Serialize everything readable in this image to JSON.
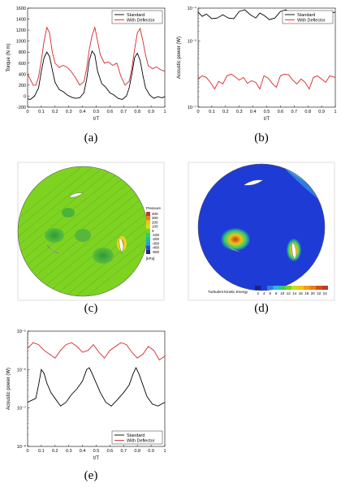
{
  "captions": [
    "(a)",
    "(b)",
    "(c)",
    "(d)",
    "(e)"
  ],
  "chart_data": [
    {
      "type": "line",
      "panel": "a",
      "xlabel": "t/T",
      "ylabel": "Torque (N m)",
      "xlim": [
        0,
        1
      ],
      "ylim": [
        -200,
        1600
      ],
      "xticks": [
        "0",
        "0.1",
        "0.2",
        "0.3",
        "0.4",
        "0.5",
        "0.6",
        "0.7",
        "0.8",
        "0.9",
        "1"
      ],
      "yticks": [
        "-200",
        "0",
        "200",
        "400",
        "600",
        "800",
        "1000",
        "1200",
        "1400",
        "1600"
      ],
      "legend": "top-right",
      "series": [
        {
          "name": "Standard",
          "color": "#000000",
          "x": [
            0,
            0.02,
            0.05,
            0.08,
            0.1,
            0.12,
            0.14,
            0.16,
            0.18,
            0.2,
            0.23,
            0.26,
            0.29,
            0.32,
            0.35,
            0.38,
            0.41,
            0.43,
            0.45,
            0.47,
            0.49,
            0.51,
            0.54,
            0.57,
            0.6,
            0.63,
            0.66,
            0.69,
            0.72,
            0.74,
            0.76,
            0.78,
            0.8,
            0.82,
            0.84,
            0.86,
            0.89,
            0.92,
            0.95,
            0.98,
            1.0
          ],
          "values": [
            -50,
            -60,
            0,
            150,
            450,
            700,
            800,
            720,
            480,
            250,
            120,
            80,
            20,
            -20,
            -40,
            -30,
            60,
            300,
            650,
            820,
            750,
            450,
            230,
            160,
            60,
            20,
            -40,
            -60,
            0,
            150,
            400,
            700,
            780,
            650,
            380,
            150,
            20,
            -40,
            -10,
            -30,
            -10
          ]
        },
        {
          "name": "With Deflector",
          "color": "#d62728",
          "x": [
            0,
            0.02,
            0.04,
            0.06,
            0.08,
            0.1,
            0.12,
            0.14,
            0.16,
            0.18,
            0.2,
            0.23,
            0.26,
            0.29,
            0.32,
            0.35,
            0.38,
            0.41,
            0.43,
            0.45,
            0.47,
            0.49,
            0.51,
            0.53,
            0.56,
            0.59,
            0.62,
            0.65,
            0.68,
            0.71,
            0.74,
            0.76,
            0.78,
            0.8,
            0.82,
            0.84,
            0.86,
            0.88,
            0.91,
            0.94,
            0.97,
            1.0
          ],
          "values": [
            400,
            300,
            200,
            200,
            350,
            650,
            1000,
            1250,
            1150,
            800,
            600,
            520,
            560,
            520,
            440,
            330,
            200,
            260,
            500,
            850,
            1100,
            1250,
            1000,
            750,
            600,
            620,
            560,
            600,
            360,
            200,
            270,
            500,
            850,
            1150,
            1230,
            1000,
            750,
            550,
            500,
            530,
            480,
            450
          ]
        }
      ]
    },
    {
      "type": "line",
      "panel": "b",
      "xlabel": "t/T",
      "ylabel": "Acoustic power (W)",
      "xlim": [
        0,
        1
      ],
      "yscale": "log",
      "ylim_exp": [
        -7,
        -4
      ],
      "xticks": [
        "0",
        "0.1",
        "0.2",
        "0.3",
        "0.4",
        "0.5",
        "0.6",
        "0.7",
        "0.8",
        "0.9",
        "1"
      ],
      "yticks": [
        "10⁻⁷",
        "10⁻⁵",
        "10⁻⁴"
      ],
      "legend": "top-right",
      "series": [
        {
          "name": "Standard",
          "color": "#000000",
          "x": [
            0,
            0.03,
            0.06,
            0.1,
            0.14,
            0.18,
            0.22,
            0.26,
            0.3,
            0.34,
            0.38,
            0.42,
            0.45,
            0.48,
            0.52,
            0.56,
            0.6,
            0.64,
            0.68,
            0.72,
            0.76,
            0.8,
            0.84,
            0.88,
            0.92,
            0.96,
            1.0
          ],
          "log10_values": [
            -4.12,
            -4.25,
            -4.18,
            -4.32,
            -4.3,
            -4.2,
            -4.3,
            -4.32,
            -4.1,
            -4.05,
            -4.2,
            -4.3,
            -4.15,
            -4.22,
            -4.35,
            -4.3,
            -4.1,
            -4.05,
            -4.2,
            -4.3,
            -4.32,
            -4.18,
            -4.12,
            -4.3,
            -4.32,
            -4.15,
            -4.12
          ]
        },
        {
          "name": "With Deflector",
          "color": "#d62728",
          "x": [
            0,
            0.03,
            0.06,
            0.09,
            0.12,
            0.15,
            0.18,
            0.21,
            0.24,
            0.27,
            0.3,
            0.33,
            0.36,
            0.39,
            0.42,
            0.45,
            0.48,
            0.51,
            0.54,
            0.57,
            0.6,
            0.63,
            0.66,
            0.69,
            0.72,
            0.75,
            0.78,
            0.81,
            0.84,
            0.87,
            0.9,
            0.93,
            0.96,
            1.0
          ],
          "log10_values": [
            -6.15,
            -6.05,
            -6.1,
            -6.25,
            -6.45,
            -6.22,
            -6.3,
            -6.05,
            -6.0,
            -6.08,
            -6.18,
            -6.1,
            -6.28,
            -6.2,
            -6.25,
            -6.45,
            -6.05,
            -6.12,
            -6.28,
            -6.4,
            -6.05,
            -6.0,
            -6.02,
            -6.18,
            -6.3,
            -6.15,
            -6.25,
            -6.45,
            -6.1,
            -6.05,
            -6.15,
            -6.25,
            -6.05,
            -6.1
          ]
        }
      ]
    },
    {
      "type": "line",
      "panel": "e",
      "xlabel": "t/T",
      "ylabel": "Acoustic power (W)",
      "xlim": [
        0,
        1
      ],
      "yscale": "log",
      "ylim_exp": [
        -8,
        -5
      ],
      "xticks": [
        "0",
        "0.1",
        "0.2",
        "0.3",
        "0.4",
        "0.5",
        "0.6",
        "0.7",
        "0.8",
        "0.9",
        "1"
      ],
      "yticks": [
        "10⁻⁸",
        "10⁻⁷",
        "10⁻⁶",
        "10⁻⁵"
      ],
      "legend": "bottom-right",
      "series": [
        {
          "name": "Standard",
          "color": "#000000",
          "x": [
            0,
            0.03,
            0.06,
            0.08,
            0.1,
            0.12,
            0.14,
            0.17,
            0.2,
            0.24,
            0.28,
            0.32,
            0.36,
            0.4,
            0.43,
            0.45,
            0.47,
            0.5,
            0.53,
            0.57,
            0.61,
            0.65,
            0.7,
            0.74,
            0.77,
            0.79,
            0.81,
            0.84,
            0.87,
            0.91,
            0.95,
            1.0
          ],
          "log10_values": [
            -6.85,
            -6.8,
            -6.75,
            -6.4,
            -6.0,
            -6.1,
            -6.35,
            -6.6,
            -6.75,
            -6.95,
            -6.85,
            -6.65,
            -6.5,
            -6.3,
            -6.0,
            -5.95,
            -6.1,
            -6.35,
            -6.6,
            -6.85,
            -6.95,
            -6.8,
            -6.6,
            -6.4,
            -6.1,
            -5.95,
            -6.1,
            -6.4,
            -6.7,
            -6.9,
            -6.95,
            -6.85
          ]
        },
        {
          "name": "With Deflector",
          "color": "#d62728",
          "x": [
            0,
            0.04,
            0.08,
            0.12,
            0.16,
            0.2,
            0.24,
            0.28,
            0.32,
            0.36,
            0.4,
            0.44,
            0.48,
            0.52,
            0.56,
            0.6,
            0.64,
            0.68,
            0.72,
            0.76,
            0.8,
            0.84,
            0.88,
            0.92,
            0.96,
            1.0
          ],
          "log10_values": [
            -5.45,
            -5.3,
            -5.35,
            -5.5,
            -5.6,
            -5.7,
            -5.5,
            -5.35,
            -5.3,
            -5.4,
            -5.55,
            -5.5,
            -5.35,
            -5.55,
            -5.7,
            -5.5,
            -5.4,
            -5.3,
            -5.35,
            -5.55,
            -5.7,
            -5.6,
            -5.4,
            -5.5,
            -5.75,
            -5.65
          ]
        }
      ]
    }
  ],
  "contour_c": {
    "colorbar_title": "Pressure",
    "colorbar_unit": "[kPa]",
    "ticks": [
      "400",
      "300",
      "200",
      "100",
      "0",
      "-100",
      "-200",
      "-300",
      "-400",
      "-500"
    ]
  },
  "contour_d": {
    "colorbar_title": "Turbulent Kinetic Energy",
    "ticks": [
      "2",
      "4",
      "6",
      "8",
      "10",
      "12",
      "14",
      "16",
      "18",
      "20",
      "22",
      "24"
    ]
  }
}
